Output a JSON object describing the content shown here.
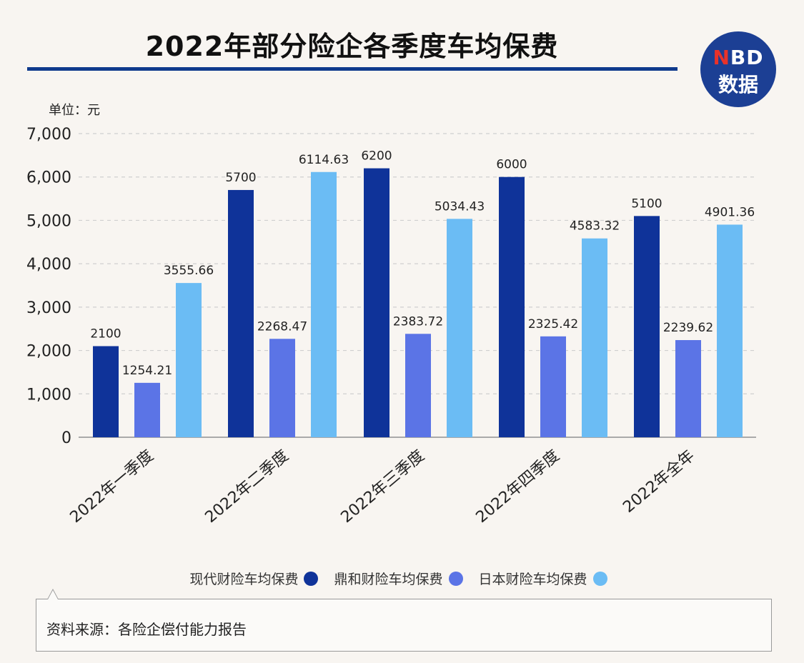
{
  "title": "2022年部分险企各季度车均保费",
  "logo": {
    "n": "N",
    "bd": "BD",
    "line2": "数据"
  },
  "unit_label": "单位：元",
  "source": "资料来源：各险企偿付能力报告",
  "colors": {
    "title_rule": "#0f3a8c",
    "logo_bg": "#1c3f94"
  },
  "chart_data": {
    "type": "bar",
    "categories": [
      "2022年一季度",
      "2022年二季度",
      "2022年三季度",
      "2022年四季度",
      "2022年全年"
    ],
    "series": [
      {
        "name": "现代财险车均保费",
        "color": "#0f3399",
        "values": [
          2100,
          5700,
          6200,
          6000,
          5100
        ],
        "labels": [
          "2100",
          "5700",
          "6200",
          "6000",
          "5100"
        ]
      },
      {
        "name": "鼎和财险车均保费",
        "color": "#5b74e6",
        "values": [
          1254.21,
          2268.47,
          2383.72,
          2325.42,
          2239.62
        ],
        "labels": [
          "1254.21",
          "2268.47",
          "2383.72",
          "2325.42",
          "2239.62"
        ]
      },
      {
        "name": "日本财险车均保费",
        "color": "#6bbcf4",
        "values": [
          3555.66,
          6114.63,
          5034.43,
          4583.32,
          4901.36
        ],
        "labels": [
          "3555.66",
          "6114.63",
          "5034.43",
          "4583.32",
          "4901.36"
        ]
      }
    ],
    "ylim": [
      0,
      7000
    ],
    "yticks": [
      0,
      1000,
      2000,
      3000,
      4000,
      5000,
      6000,
      7000
    ],
    "ytick_labels": [
      "0",
      "1,000",
      "2,000",
      "3,000",
      "4,000",
      "5,000",
      "6,000",
      "7,000"
    ],
    "grid": true,
    "legend_position": "bottom"
  }
}
